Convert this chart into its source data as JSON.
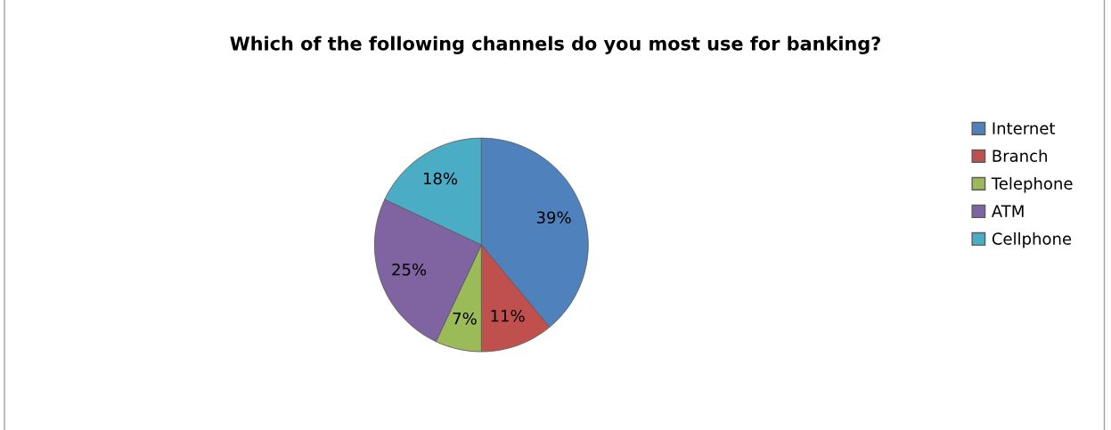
{
  "chart_data": {
    "type": "pie",
    "title": "Which of the following channels do you most use for banking?",
    "categories": [
      "Internet",
      "Branch",
      "Telephone",
      "ATM",
      "Cellphone"
    ],
    "values": [
      39,
      11,
      7,
      25,
      18
    ],
    "value_labels": [
      "39%",
      "11%",
      "7%",
      "25%",
      "18%"
    ],
    "colors": [
      "#4f81bd",
      "#c0504d",
      "#9bbb59",
      "#8064a2",
      "#4bacc6"
    ],
    "legend": "right"
  }
}
